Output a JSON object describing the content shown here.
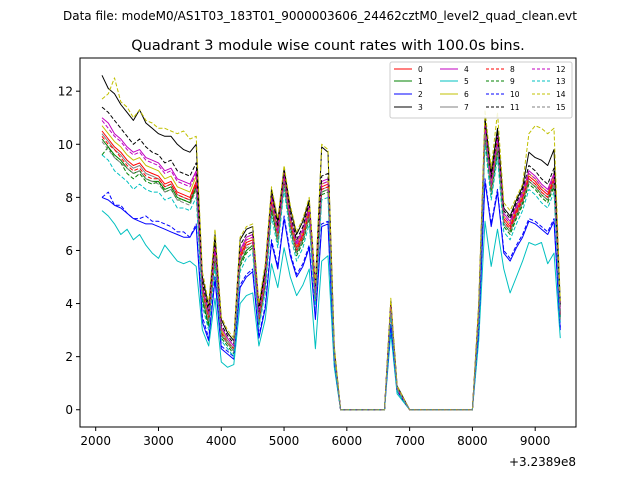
{
  "chart_data": {
    "type": "line",
    "suptitle": "Data file: modeM0/AS1T03_183T01_9000003606_24462cztM0_level2_quad_clean.evt",
    "title": "Quadrant 3 module wise count rates with 100.0s bins.",
    "xlabel": "",
    "ylabel": "",
    "x_offset_label": "+3.2389e8",
    "xlim": [
      1750,
      9650
    ],
    "ylim": [
      -0.65,
      13.25
    ],
    "xticks": [
      2000,
      3000,
      4000,
      5000,
      6000,
      7000,
      8000,
      9000
    ],
    "xtick_labels": [
      "2000",
      "3000",
      "4000",
      "5000",
      "6000",
      "7000",
      "8000",
      "9000"
    ],
    "yticks": [
      0,
      2,
      4,
      6,
      8,
      10,
      12
    ],
    "ytick_labels": [
      "0",
      "2",
      "4",
      "6",
      "8",
      "10",
      "12"
    ],
    "grid": false,
    "legend_position": "top-right",
    "x": [
      2100,
      2200,
      2300,
      2400,
      2500,
      2600,
      2700,
      2800,
      2900,
      3000,
      3100,
      3200,
      3300,
      3400,
      3500,
      3600,
      3700,
      3800,
      3900,
      4000,
      4100,
      4200,
      4300,
      4400,
      4500,
      4600,
      4700,
      4800,
      4900,
      5000,
      5100,
      5200,
      5300,
      5400,
      5500,
      5600,
      5700,
      5800,
      5900,
      6000,
      6600,
      6700,
      6800,
      7000,
      8000,
      8100,
      8200,
      8300,
      8400,
      8500,
      8600,
      8700,
      8800,
      8900,
      9000,
      9100,
      9200,
      9300,
      9400
    ],
    "series": [
      {
        "name": "0",
        "color": "#ff0000",
        "dash": "solid",
        "values": [
          10.5,
          10.2,
          9.9,
          9.7,
          9.4,
          9.2,
          9.3,
          9.0,
          8.9,
          8.8,
          8.5,
          8.6,
          8.2,
          8.1,
          8.0,
          8.6,
          4.5,
          3.5,
          6.0,
          3.0,
          2.6,
          2.3,
          5.8,
          6.3,
          6.4,
          3.5,
          4.9,
          7.9,
          6.6,
          8.8,
          7.1,
          6.1,
          6.6,
          7.5,
          4.3,
          8.4,
          8.5,
          2.1,
          0.0,
          0.0,
          0.0,
          3.9,
          0.8,
          0.0,
          0.0,
          3.6,
          10.6,
          8.4,
          10.1,
          7.2,
          6.9,
          7.5,
          8.0,
          8.8,
          8.6,
          8.3,
          8.1,
          8.7,
          3.6
        ]
      },
      {
        "name": "1",
        "color": "#008000",
        "dash": "solid",
        "values": [
          10.2,
          9.9,
          9.6,
          9.4,
          9.1,
          8.9,
          9.0,
          8.7,
          8.6,
          8.6,
          8.3,
          8.4,
          8.0,
          7.9,
          7.8,
          8.4,
          4.2,
          3.2,
          5.7,
          2.8,
          2.5,
          2.2,
          5.5,
          6.0,
          6.2,
          3.3,
          4.7,
          7.6,
          6.4,
          8.6,
          6.9,
          5.9,
          6.4,
          7.3,
          4.1,
          8.2,
          8.3,
          2.0,
          0.0,
          0.0,
          0.0,
          3.8,
          0.8,
          0.0,
          0.0,
          3.5,
          10.3,
          8.2,
          9.8,
          7.0,
          6.7,
          7.3,
          7.8,
          8.6,
          8.4,
          8.1,
          7.9,
          8.5,
          3.5
        ]
      },
      {
        "name": "2",
        "color": "#0000ff",
        "dash": "solid",
        "values": [
          8.0,
          7.9,
          7.7,
          7.6,
          7.4,
          7.2,
          7.1,
          7.0,
          7.0,
          6.9,
          6.8,
          6.7,
          6.6,
          6.5,
          6.5,
          6.9,
          3.3,
          2.6,
          4.9,
          2.3,
          2.1,
          1.9,
          4.6,
          5.0,
          5.2,
          2.7,
          3.8,
          6.3,
          5.3,
          7.2,
          5.8,
          5.0,
          5.4,
          6.1,
          3.4,
          6.9,
          7.0,
          1.7,
          0.0,
          0.0,
          0.0,
          3.2,
          0.7,
          0.0,
          0.0,
          3.0,
          8.6,
          6.9,
          8.2,
          5.9,
          5.6,
          6.1,
          6.5,
          7.1,
          7.0,
          6.8,
          6.6,
          7.1,
          3.0
        ]
      },
      {
        "name": "3",
        "color": "#000000",
        "dash": "solid",
        "values": [
          12.6,
          12.1,
          11.9,
          11.5,
          11.2,
          10.9,
          11.3,
          10.8,
          10.6,
          10.4,
          10.3,
          10.3,
          10.0,
          9.8,
          9.7,
          10.0,
          5.0,
          3.9,
          6.6,
          3.4,
          2.9,
          2.6,
          6.4,
          6.8,
          6.9,
          3.9,
          5.3,
          8.3,
          7.1,
          9.1,
          7.6,
          6.6,
          7.1,
          7.9,
          4.7,
          9.9,
          9.7,
          2.3,
          0.0,
          0.0,
          0.0,
          4.1,
          0.9,
          0.0,
          0.0,
          3.9,
          11.0,
          8.9,
          10.6,
          7.6,
          7.3,
          7.9,
          8.4,
          9.7,
          9.5,
          9.4,
          9.2,
          9.8,
          4.0
        ]
      },
      {
        "name": "4",
        "color": "#c000c0",
        "dash": "solid",
        "values": [
          11.0,
          10.8,
          10.4,
          10.2,
          9.9,
          9.7,
          9.8,
          9.5,
          9.4,
          9.3,
          9.0,
          9.1,
          8.7,
          8.6,
          8.5,
          9.0,
          4.7,
          3.6,
          6.2,
          3.1,
          2.7,
          2.4,
          6.0,
          6.5,
          6.6,
          3.6,
          5.1,
          8.1,
          6.8,
          8.9,
          7.3,
          6.3,
          6.8,
          7.7,
          4.5,
          8.6,
          8.7,
          2.1,
          0.0,
          0.0,
          0.0,
          4.0,
          0.8,
          0.0,
          0.0,
          3.7,
          10.8,
          8.6,
          10.3,
          7.4,
          7.1,
          7.7,
          8.2,
          9.0,
          8.8,
          8.5,
          8.3,
          8.9,
          3.7
        ]
      },
      {
        "name": "5",
        "color": "#00c0c0",
        "dash": "solid",
        "values": [
          7.5,
          7.3,
          7.0,
          6.6,
          6.8,
          6.4,
          6.6,
          6.2,
          5.9,
          5.7,
          6.2,
          5.9,
          5.6,
          5.5,
          5.6,
          5.4,
          3.0,
          2.4,
          4.2,
          1.8,
          1.6,
          1.7,
          4.0,
          4.3,
          4.4,
          2.4,
          3.4,
          5.5,
          4.6,
          6.1,
          5.0,
          4.3,
          4.7,
          5.3,
          2.3,
          5.6,
          5.8,
          1.6,
          0.0,
          0.0,
          0.0,
          2.9,
          0.6,
          0.0,
          0.0,
          2.6,
          7.1,
          5.4,
          6.8,
          5.3,
          4.4,
          5.0,
          5.6,
          6.3,
          6.2,
          6.3,
          5.5,
          5.9,
          2.7
        ]
      },
      {
        "name": "6",
        "color": "#c0c000",
        "dash": "solid",
        "values": [
          10.7,
          10.4,
          10.1,
          9.9,
          9.6,
          9.4,
          9.5,
          9.2,
          9.1,
          9.0,
          8.7,
          8.8,
          8.4,
          8.3,
          8.2,
          8.8,
          4.6,
          3.5,
          6.1,
          3.0,
          2.6,
          2.3,
          5.9,
          6.4,
          6.5,
          3.5,
          5.0,
          8.0,
          6.7,
          8.8,
          7.2,
          6.2,
          6.7,
          7.6,
          4.4,
          8.5,
          8.6,
          2.1,
          0.0,
          0.0,
          0.0,
          3.9,
          0.8,
          0.0,
          0.0,
          3.6,
          10.7,
          8.5,
          10.2,
          7.3,
          7.0,
          7.6,
          8.1,
          8.9,
          8.7,
          8.4,
          8.2,
          8.8,
          3.6
        ]
      },
      {
        "name": "7",
        "color": "#808080",
        "dash": "solid",
        "values": [
          10.4,
          10.1,
          9.8,
          9.6,
          9.3,
          9.1,
          9.2,
          8.9,
          8.8,
          8.7,
          8.4,
          8.5,
          8.1,
          8.0,
          7.9,
          8.5,
          4.4,
          3.4,
          5.9,
          2.9,
          2.6,
          2.3,
          5.7,
          6.2,
          6.3,
          3.4,
          4.8,
          7.8,
          6.5,
          8.7,
          7.0,
          6.0,
          6.5,
          7.4,
          4.2,
          8.3,
          8.4,
          2.0,
          0.0,
          0.0,
          0.0,
          3.8,
          0.8,
          0.0,
          0.0,
          3.5,
          10.5,
          8.3,
          10.0,
          7.1,
          6.8,
          7.4,
          7.9,
          8.7,
          8.5,
          8.2,
          8.0,
          8.6,
          3.5
        ]
      },
      {
        "name": "8",
        "color": "#ff0000",
        "dash": "dashed",
        "values": [
          10.3,
          10.0,
          9.8,
          9.5,
          9.2,
          9.0,
          9.1,
          8.8,
          8.7,
          8.7,
          8.4,
          8.5,
          8.1,
          8.0,
          7.9,
          8.5,
          4.4,
          3.4,
          5.9,
          2.9,
          2.5,
          2.3,
          5.7,
          6.2,
          6.3,
          3.4,
          4.8,
          7.8,
          6.5,
          8.7,
          7.0,
          6.0,
          6.5,
          7.4,
          4.2,
          8.3,
          8.4,
          2.0,
          0.0,
          0.0,
          0.0,
          3.8,
          0.8,
          0.0,
          0.0,
          3.5,
          10.5,
          8.3,
          10.0,
          7.1,
          6.8,
          7.4,
          7.9,
          8.7,
          8.5,
          8.2,
          8.0,
          8.6,
          3.5
        ]
      },
      {
        "name": "9",
        "color": "#008000",
        "dash": "dashed",
        "values": [
          9.6,
          9.9,
          9.5,
          9.3,
          8.9,
          8.7,
          8.9,
          8.6,
          8.5,
          8.6,
          8.2,
          8.3,
          7.9,
          7.9,
          7.8,
          8.3,
          4.1,
          3.1,
          5.6,
          2.7,
          2.4,
          2.1,
          5.4,
          5.9,
          6.1,
          3.2,
          4.6,
          7.5,
          6.3,
          8.5,
          6.8,
          5.8,
          6.3,
          7.2,
          4.0,
          8.1,
          8.2,
          1.9,
          0.0,
          0.0,
          0.0,
          3.7,
          0.7,
          0.0,
          0.0,
          3.4,
          10.2,
          8.1,
          9.7,
          6.9,
          6.6,
          7.2,
          7.7,
          8.5,
          8.3,
          8.0,
          7.8,
          8.4,
          3.4
        ]
      },
      {
        "name": "10",
        "color": "#0000ff",
        "dash": "dashed",
        "values": [
          8.0,
          8.2,
          7.7,
          7.7,
          7.4,
          7.2,
          7.2,
          7.3,
          7.1,
          7.1,
          7.0,
          6.9,
          6.7,
          6.7,
          6.5,
          7.0,
          3.5,
          2.7,
          5.0,
          2.4,
          2.2,
          2.0,
          4.7,
          5.1,
          5.3,
          2.8,
          3.9,
          6.4,
          5.4,
          7.3,
          5.9,
          5.1,
          5.5,
          6.2,
          3.5,
          7.0,
          7.1,
          1.8,
          0.0,
          0.0,
          0.0,
          3.2,
          0.7,
          0.0,
          0.0,
          3.0,
          8.7,
          7.0,
          8.3,
          6.0,
          5.7,
          6.2,
          6.6,
          7.2,
          7.1,
          6.9,
          6.7,
          7.2,
          3.1
        ]
      },
      {
        "name": "11",
        "color": "#000000",
        "dash": "dashed",
        "values": [
          11.4,
          11.2,
          10.9,
          10.6,
          10.3,
          10.0,
          10.2,
          9.9,
          9.7,
          9.6,
          9.3,
          9.4,
          9.0,
          8.9,
          8.8,
          9.3,
          4.8,
          3.7,
          6.4,
          3.2,
          2.8,
          2.5,
          6.2,
          6.6,
          6.7,
          3.7,
          5.2,
          8.2,
          6.9,
          9.0,
          7.4,
          6.4,
          6.9,
          7.8,
          4.6,
          8.8,
          8.9,
          2.2,
          0.0,
          0.0,
          0.0,
          4.0,
          0.9,
          0.0,
          0.0,
          3.8,
          10.9,
          8.7,
          10.4,
          7.5,
          7.2,
          7.8,
          8.3,
          9.2,
          9.0,
          8.7,
          8.5,
          9.1,
          3.8
        ]
      },
      {
        "name": "12",
        "color": "#c000c0",
        "dash": "dashed",
        "values": [
          10.9,
          10.6,
          10.3,
          10.1,
          9.8,
          9.6,
          9.7,
          9.4,
          9.3,
          9.2,
          8.9,
          9.0,
          8.6,
          8.5,
          8.4,
          8.9,
          4.6,
          3.6,
          6.1,
          3.1,
          2.7,
          2.4,
          5.9,
          6.4,
          6.5,
          3.6,
          5.0,
          8.0,
          6.7,
          8.8,
          7.2,
          6.2,
          6.7,
          7.6,
          4.4,
          8.5,
          8.6,
          2.1,
          0.0,
          0.0,
          0.0,
          3.9,
          0.8,
          0.0,
          0.0,
          3.6,
          10.7,
          8.5,
          10.2,
          7.3,
          7.0,
          7.6,
          8.1,
          8.9,
          8.7,
          8.4,
          8.2,
          8.8,
          3.6
        ]
      },
      {
        "name": "13",
        "color": "#00c0c0",
        "dash": "dashed",
        "values": [
          9.6,
          9.4,
          9.0,
          8.8,
          8.6,
          8.3,
          8.5,
          8.3,
          8.2,
          8.2,
          7.9,
          8.0,
          7.6,
          7.6,
          7.5,
          8.0,
          3.9,
          3.0,
          5.4,
          2.6,
          2.3,
          2.0,
          5.2,
          5.7,
          5.9,
          3.1,
          4.4,
          7.3,
          6.1,
          8.3,
          6.6,
          5.6,
          6.1,
          7.0,
          3.8,
          7.9,
          8.0,
          1.9,
          0.0,
          0.0,
          0.0,
          3.6,
          0.7,
          0.0,
          0.0,
          3.3,
          10.0,
          7.9,
          9.5,
          6.7,
          6.4,
          7.0,
          7.5,
          8.3,
          8.1,
          7.8,
          7.6,
          8.2,
          3.3
        ]
      },
      {
        "name": "14",
        "color": "#c0c000",
        "dash": "dashed",
        "values": [
          11.7,
          11.9,
          12.5,
          11.6,
          11.4,
          11.0,
          11.3,
          10.9,
          10.8,
          10.6,
          10.6,
          10.5,
          10.4,
          10.5,
          10.2,
          10.3,
          5.2,
          4.0,
          6.8,
          3.5,
          3.0,
          2.7,
          6.5,
          6.9,
          7.0,
          4.0,
          5.5,
          8.4,
          7.2,
          9.2,
          7.7,
          6.7,
          7.2,
          8.0,
          4.8,
          10.0,
          9.8,
          2.4,
          0.0,
          0.0,
          0.0,
          4.2,
          0.9,
          0.0,
          0.0,
          4.0,
          11.3,
          9.1,
          11.2,
          7.8,
          7.5,
          8.0,
          8.5,
          10.4,
          10.7,
          10.6,
          10.4,
          10.6,
          4.1
        ]
      },
      {
        "name": "15",
        "color": "#808080",
        "dash": "dashed",
        "values": [
          10.1,
          9.8,
          9.5,
          9.3,
          9.1,
          8.9,
          9.0,
          8.7,
          8.6,
          8.5,
          8.2,
          8.3,
          7.9,
          7.8,
          7.7,
          8.3,
          4.3,
          3.3,
          5.8,
          2.8,
          2.5,
          2.2,
          5.6,
          6.1,
          6.2,
          3.3,
          4.7,
          7.7,
          6.4,
          8.6,
          6.9,
          5.9,
          6.4,
          7.3,
          4.1,
          8.2,
          8.3,
          2.0,
          0.0,
          0.0,
          0.0,
          3.7,
          0.8,
          0.0,
          0.0,
          3.4,
          10.4,
          8.2,
          9.9,
          7.0,
          6.7,
          7.3,
          7.8,
          8.6,
          8.4,
          8.1,
          7.9,
          8.5,
          3.4
        ]
      }
    ]
  }
}
